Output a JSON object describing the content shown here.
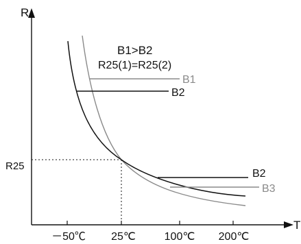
{
  "axes": {
    "y_label": "R",
    "x_label": "T",
    "r25_label": "R25",
    "x_ticks": [
      "－50℃",
      "25℃",
      "100℃",
      "200℃"
    ]
  },
  "annotation": {
    "line1": "B1>B2",
    "line2": "R25(1)=R25(2)"
  },
  "curve_labels": {
    "b1": "B1",
    "b2_top": "B2",
    "b2_bottom": "B2",
    "b3": "B3"
  },
  "colors": {
    "curve_b2": "#111111",
    "curve_b1": "#8a8a8a",
    "axis": "#111111"
  }
}
